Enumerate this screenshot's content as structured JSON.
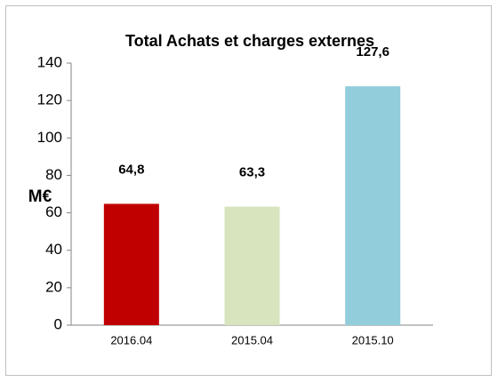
{
  "chart_data": {
    "type": "bar",
    "title": "Total Achats et charges externes",
    "y_label": "M€",
    "categories": [
      "2016.04",
      "2015.04",
      "2015.10"
    ],
    "values": [
      64.8,
      63.3,
      127.6
    ],
    "value_labels": [
      "64,8",
      "63,3",
      "127,6"
    ],
    "colors": [
      "#c00000",
      "#d7e4bd",
      "#92cddc"
    ],
    "ylim": [
      0,
      140
    ],
    "yticks": [
      0,
      20,
      40,
      60,
      80,
      100,
      120,
      140
    ],
    "grid": false
  }
}
